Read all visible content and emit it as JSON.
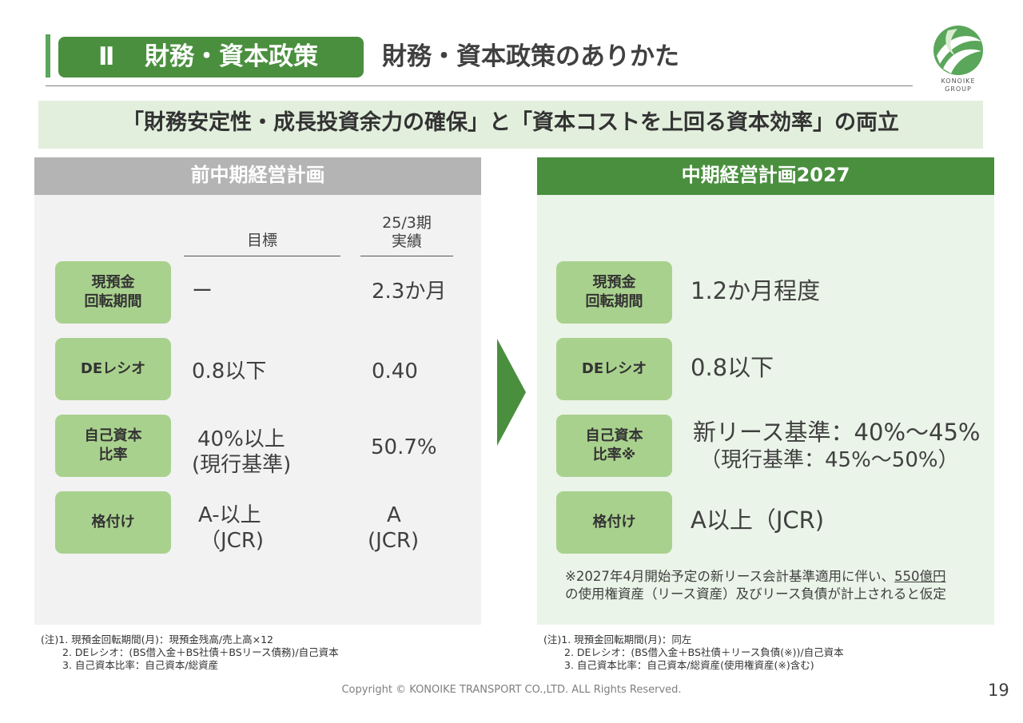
{
  "header": {
    "section_number": "Ⅱ",
    "section_label": "財務・資本政策",
    "title": "財務・資本政策のありかた"
  },
  "logo": {
    "brand_line1": "KONOIKE",
    "brand_line2": "GROUP",
    "color": "#5aa65a"
  },
  "banner": {
    "text": "「財務安定性・成長投資余力の確保」と「資本コストを上回る資本効率」の両立"
  },
  "left_panel": {
    "title": "前中期経営計画",
    "col_target": "目標",
    "col_actual_line1": "25/3期",
    "col_actual_line2": "実績",
    "rows": [
      {
        "label_line1": "現預金",
        "label_line2": "回転期間",
        "target_line1": "ー",
        "target_line2": "",
        "actual_line1": "2.3か月",
        "actual_line2": ""
      },
      {
        "label_line1": "DEレシオ",
        "label_line2": "",
        "target_line1": "0.8以下",
        "target_line2": "",
        "actual_line1": "0.40",
        "actual_line2": ""
      },
      {
        "label_line1": "自己資本",
        "label_line2": "比率",
        "target_line1": "40%以上",
        "target_line2": "(現行基準)",
        "actual_line1": "50.7%",
        "actual_line2": ""
      },
      {
        "label_line1": "格付け",
        "label_line2": "",
        "target_line1": "A-以上",
        "target_line2": "（JCR)",
        "actual_line1": "A",
        "actual_line2": "(JCR)"
      }
    ],
    "notes": [
      "(注)1. 現預金回転期間(月)：現預金残高/売上高×12",
      "2. DEレシオ：(BS借入金＋BS社債＋BSリース債務)/自己資本",
      "3. 自己資本比率：自己資本/総資産"
    ]
  },
  "right_panel": {
    "title": "中期経営計画2027",
    "rows": [
      {
        "label_line1": "現預金",
        "label_line2": "回転期間",
        "value_line1": "1.2か月程度",
        "value_line2": ""
      },
      {
        "label_line1": "DEレシオ",
        "label_line2": "",
        "value_line1": "0.8以下",
        "value_line2": ""
      },
      {
        "label_line1": "自己資本",
        "label_line2": "比率※",
        "value_line1": "新リース基準：40%～45%",
        "value_line2": "（現行基準：45%～50%）"
      },
      {
        "label_line1": "格付け",
        "label_line2": "",
        "value_line1": "A以上（JCR)",
        "value_line2": ""
      }
    ],
    "footnote_part1": "※2027年4月開始予定の新リース会計基準適用に伴い、",
    "footnote_amount": "550億円",
    "footnote_part2": "の使用権資産（リース資産）及びリース負債が計上されると仮定",
    "notes": [
      "(注)1. 現預金回転期間(月)：同左",
      "2. DEレシオ：(BS借入金＋BS社債＋リース負債(※))/自己資本",
      "3. 自己資本比率：自己資本/総資産(使用権資産(※)含む)"
    ]
  },
  "footer": {
    "copyright": "Copyright © KONOIKE TRANSPORT CO.,LTD.  ALL Rights Reserved.",
    "page_number": "19"
  }
}
